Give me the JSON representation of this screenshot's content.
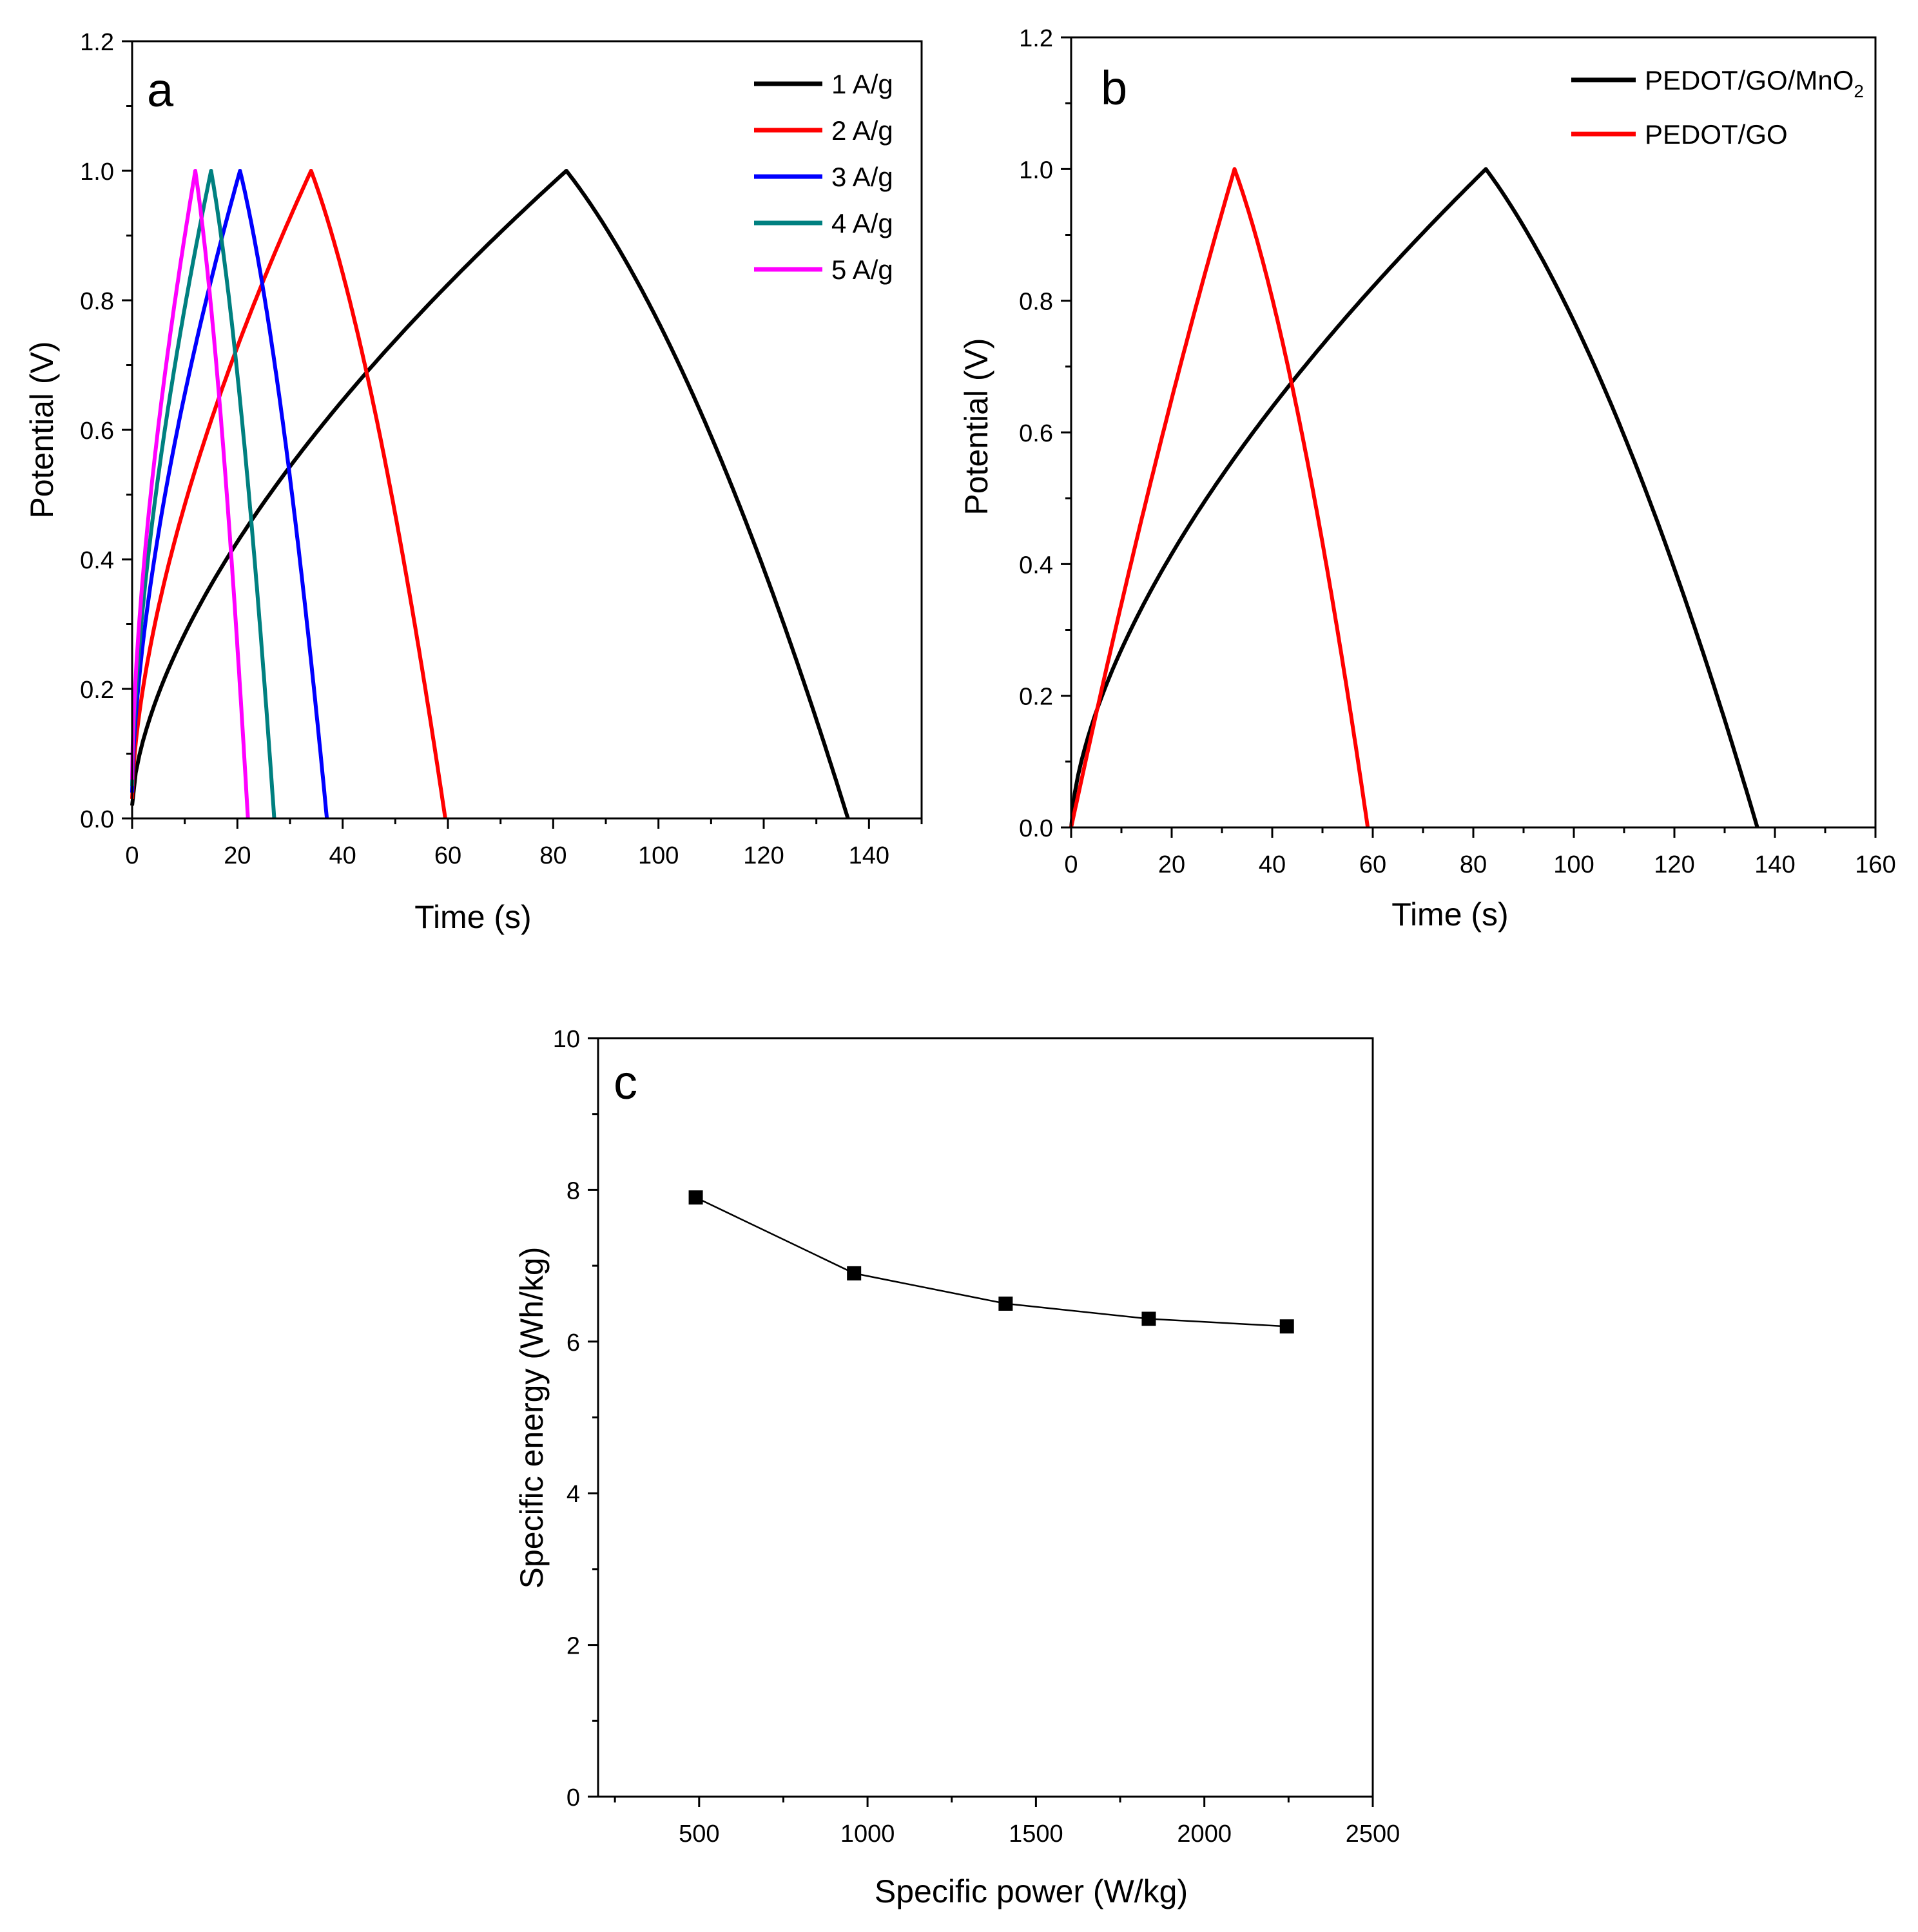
{
  "chart_data": [
    {
      "type": "line",
      "panel_label": "a",
      "xlabel": "Time (s)",
      "ylabel": "Potential (V)",
      "xlim": [
        0,
        150
      ],
      "ylim": [
        0,
        1.2
      ],
      "xticks": [
        "0",
        "20",
        "40",
        "60",
        "80",
        "100",
        "120",
        "140"
      ],
      "yticks": [
        "0.0",
        "0.2",
        "0.4",
        "0.6",
        "0.8",
        "1.0",
        "1.2"
      ],
      "legend_position": "top-right",
      "series": [
        {
          "name": "1 A/g",
          "color": "#000000",
          "charge_end": 82.5,
          "discharge_end": 136.0,
          "v0": 0.02,
          "vmax": 1.0
        },
        {
          "name": "2 A/g",
          "color": "#ff0000",
          "charge_end": 34.0,
          "discharge_end": 59.5,
          "v0": 0.03,
          "vmax": 1.0
        },
        {
          "name": "3 A/g",
          "color": "#0000ff",
          "charge_end": 20.5,
          "discharge_end": 37.0,
          "v0": 0.04,
          "vmax": 1.0
        },
        {
          "name": "4 A/g",
          "color": "#008080",
          "charge_end": 15.0,
          "discharge_end": 27.0,
          "v0": 0.05,
          "vmax": 1.0
        },
        {
          "name": "5 A/g",
          "color": "#ff00ff",
          "charge_end": 12.0,
          "discharge_end": 22.0,
          "v0": 0.06,
          "vmax": 1.0
        }
      ]
    },
    {
      "type": "line",
      "panel_label": "b",
      "xlabel": "Time (s)",
      "ylabel": "Potential (V)",
      "xlim": [
        0,
        160
      ],
      "ylim": [
        0,
        1.2
      ],
      "xticks": [
        "0",
        "20",
        "40",
        "60",
        "80",
        "100",
        "120",
        "140",
        "160"
      ],
      "yticks": [
        "0.0",
        "0.2",
        "0.4",
        "0.6",
        "0.8",
        "1.0",
        "1.2"
      ],
      "legend_position": "top-right",
      "series": [
        {
          "name": "PEDOT/GO/MnO",
          "name_subscript": "2",
          "color": "#000000",
          "charge_end": 82.5,
          "discharge_end": 136.5,
          "v0": 0.0,
          "vmax": 1.0,
          "shape": "curved"
        },
        {
          "name": "PEDOT/GO",
          "color": "#ff0000",
          "charge_end": 32.5,
          "discharge_end": 59.0,
          "v0": 0.0,
          "vmax": 1.0,
          "shape": "linear"
        }
      ]
    },
    {
      "type": "scatter",
      "panel_label": "c",
      "xlabel": "Specific power (W/kg)",
      "ylabel": "Specific energy (Wh/kg)",
      "xlim": [
        200,
        2500
      ],
      "ylim": [
        0,
        10
      ],
      "xticks": [
        "500",
        "1000",
        "1500",
        "2000",
        "2500"
      ],
      "yticks": [
        "0",
        "2",
        "4",
        "6",
        "8",
        "10"
      ],
      "x": [
        490,
        960,
        1410,
        1835,
        2245
      ],
      "y": [
        7.9,
        6.9,
        6.5,
        6.3,
        6.2
      ],
      "marker": "square",
      "connected": true
    }
  ]
}
